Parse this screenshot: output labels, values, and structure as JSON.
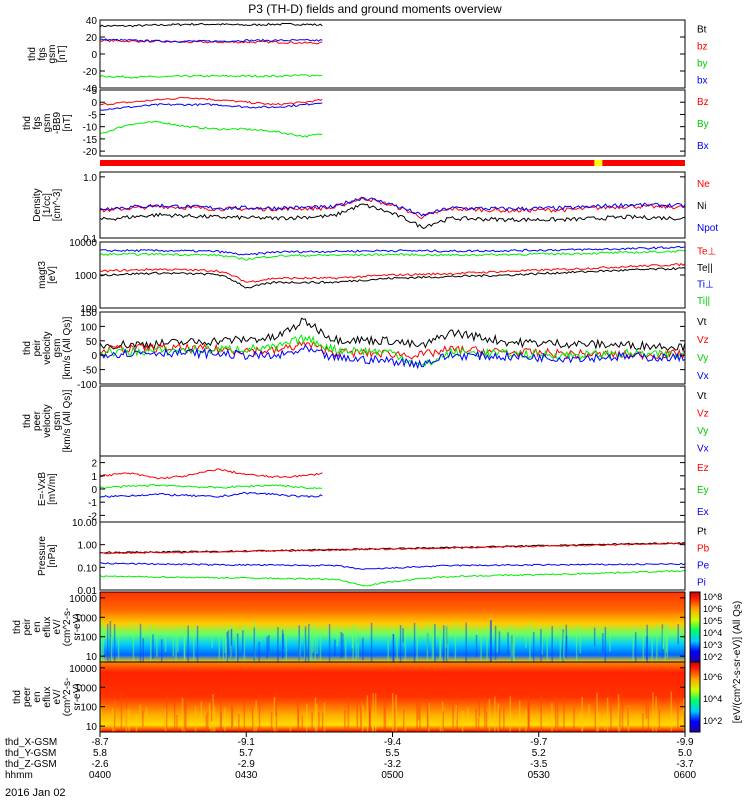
{
  "title": "P3 (TH-D) fields and ground moments overview",
  "date": "2016 Jan 02",
  "chart_data": [
    {
      "id": "fgs",
      "type": "line",
      "ylabel": [
        "thd",
        "fgs",
        "gsm",
        "[nT]"
      ],
      "ylim": [
        -40,
        40
      ],
      "yticks": [
        "40",
        "20",
        "0",
        "-20",
        "-40"
      ],
      "ytickvals": [
        40,
        20,
        0,
        -20,
        -40
      ],
      "legend": [
        "Bt",
        "bz",
        "by",
        "bx"
      ],
      "series": [
        {
          "name": "Bt",
          "color": "#000000",
          "x": [
            0.0,
            0.05,
            0.1,
            0.15,
            0.2,
            0.25,
            0.3,
            0.35,
            0.38
          ],
          "values": [
            33,
            33,
            34,
            35,
            35,
            34,
            35,
            35,
            34
          ]
        },
        {
          "name": "bz",
          "color": "#ff0000",
          "x": [
            0.0,
            0.05,
            0.1,
            0.15,
            0.2,
            0.25,
            0.3,
            0.35,
            0.38
          ],
          "values": [
            16,
            15,
            15,
            14,
            14,
            14,
            14,
            13,
            13
          ]
        },
        {
          "name": "by",
          "color": "#00ee00",
          "x": [
            0.0,
            0.05,
            0.1,
            0.15,
            0.2,
            0.25,
            0.3,
            0.35,
            0.38
          ],
          "values": [
            -26,
            -27,
            -27,
            -26,
            -26,
            -26,
            -26,
            -25,
            -25
          ]
        },
        {
          "name": "bx",
          "color": "#0000ff",
          "x": [
            0.0,
            0.05,
            0.1,
            0.15,
            0.2,
            0.25,
            0.3,
            0.35,
            0.38
          ],
          "values": [
            17,
            16,
            15,
            15,
            15,
            16,
            16,
            16,
            16
          ]
        }
      ]
    },
    {
      "id": "fgsgsm",
      "type": "line",
      "ylabel": [
        "thd",
        "fgs",
        "gsm",
        "-BB9",
        "[nT]"
      ],
      "ylim": [
        -22,
        5
      ],
      "yticks": [
        "5",
        "0",
        "-5",
        "-10",
        "-15",
        "-20"
      ],
      "ytickvals": [
        5,
        0,
        -5,
        -10,
        -15,
        -20
      ],
      "legend": [
        "Bz",
        "By",
        "Bx"
      ],
      "series": [
        {
          "name": "Bz",
          "color": "#ff0000",
          "x": [
            0.0,
            0.05,
            0.1,
            0.15,
            0.2,
            0.25,
            0.3,
            0.35,
            0.38
          ],
          "values": [
            -1,
            0,
            1,
            2,
            1,
            0,
            -1,
            0,
            1
          ]
        },
        {
          "name": "By",
          "color": "#00ee00",
          "x": [
            0.0,
            0.05,
            0.1,
            0.15,
            0.2,
            0.25,
            0.3,
            0.35,
            0.38
          ],
          "values": [
            -13,
            -9,
            -8,
            -10,
            -11,
            -11,
            -12,
            -14,
            -13
          ]
        },
        {
          "name": "Bx",
          "color": "#0000ff",
          "x": [
            0.0,
            0.05,
            0.1,
            0.15,
            0.2,
            0.25,
            0.3,
            0.35,
            0.38
          ],
          "values": [
            -3,
            -2,
            -1,
            -1,
            -1,
            -2,
            -2,
            -1,
            0
          ]
        }
      ]
    },
    {
      "id": "density",
      "type": "line",
      "scale": "log",
      "ylabel": [
        "Density",
        "[1/cc]",
        "[cm^-3]"
      ],
      "ylim": [
        0.1,
        1.2
      ],
      "yticks": [
        "1.0",
        "0.1"
      ],
      "ytickvals": [
        1.0,
        0.1
      ],
      "legend": [
        "Ne",
        "Ni",
        "Npot"
      ],
      "series": [
        {
          "name": "Ne",
          "color": "#ff0000",
          "x": [
            0,
            0.1,
            0.2,
            0.3,
            0.4,
            0.45,
            0.5,
            0.55,
            0.6,
            0.7,
            0.8,
            0.9,
            1.0
          ],
          "values": [
            0.28,
            0.33,
            0.3,
            0.3,
            0.31,
            0.45,
            0.34,
            0.22,
            0.3,
            0.28,
            0.29,
            0.33,
            0.32
          ]
        },
        {
          "name": "Ni",
          "color": "#000000",
          "x": [
            0,
            0.1,
            0.2,
            0.3,
            0.4,
            0.45,
            0.5,
            0.55,
            0.6,
            0.7,
            0.8,
            0.9,
            1.0
          ],
          "values": [
            0.2,
            0.24,
            0.22,
            0.21,
            0.23,
            0.35,
            0.25,
            0.15,
            0.21,
            0.2,
            0.2,
            0.22,
            0.21
          ]
        },
        {
          "name": "Npot",
          "color": "#0000ff",
          "x": [
            0,
            0.1,
            0.2,
            0.3,
            0.4,
            0.45,
            0.5,
            0.55,
            0.6,
            0.7,
            0.8,
            0.9,
            1.0
          ],
          "values": [
            0.3,
            0.34,
            0.31,
            0.31,
            0.32,
            0.46,
            0.35,
            0.23,
            0.31,
            0.3,
            0.31,
            0.35,
            0.34
          ]
        }
      ]
    },
    {
      "id": "temp",
      "type": "line",
      "scale": "log",
      "ylabel": [
        "magt3",
        "[eV]"
      ],
      "ylim": [
        100,
        10000
      ],
      "yticks": [
        "10000",
        "1000",
        "100"
      ],
      "ytickvals": [
        10000,
        1000,
        100
      ],
      "legend": [
        "Te⊥",
        "Te||",
        "Ti⊥",
        "Ti||"
      ],
      "series": [
        {
          "name": "Te⊥",
          "color": "#ff0000",
          "x": [
            0,
            0.1,
            0.2,
            0.25,
            0.3,
            0.4,
            0.5,
            0.6,
            0.7,
            0.8,
            0.9,
            1.0
          ],
          "values": [
            1300,
            1500,
            1350,
            600,
            800,
            800,
            1000,
            1100,
            1300,
            1500,
            1800,
            2100
          ]
        },
        {
          "name": "Te||",
          "color": "#000000",
          "x": [
            0,
            0.1,
            0.2,
            0.25,
            0.3,
            0.4,
            0.5,
            0.6,
            0.7,
            0.8,
            0.9,
            1.0
          ],
          "values": [
            1000,
            1150,
            1050,
            400,
            600,
            600,
            800,
            900,
            1000,
            1200,
            1400,
            1600
          ]
        },
        {
          "name": "Ti⊥",
          "color": "#0000ff",
          "x": [
            0,
            0.1,
            0.2,
            0.25,
            0.3,
            0.4,
            0.5,
            0.6,
            0.7,
            0.8,
            0.9,
            1.0
          ],
          "values": [
            5500,
            5500,
            5200,
            4000,
            5000,
            5200,
            5500,
            5300,
            5500,
            5800,
            6200,
            7000
          ]
        },
        {
          "name": "Ti||",
          "color": "#00ee00",
          "x": [
            0,
            0.1,
            0.2,
            0.25,
            0.3,
            0.4,
            0.5,
            0.6,
            0.7,
            0.8,
            0.9,
            1.0
          ],
          "values": [
            4200,
            4300,
            4000,
            3000,
            3800,
            4000,
            4200,
            4000,
            4200,
            4400,
            4800,
            5300
          ]
        }
      ]
    },
    {
      "id": "pvel",
      "type": "line",
      "ylabel": [
        "thd",
        "peir",
        "velocity",
        "gsm",
        "[km/s (All Qs)]"
      ],
      "ylim": [
        -100,
        150
      ],
      "yticks": [
        "150",
        "100",
        "50",
        "0",
        "-50",
        "-100"
      ],
      "ytickvals": [
        150,
        100,
        50,
        0,
        -50,
        -100
      ],
      "legend": [
        "Vt",
        "Vz",
        "Vy",
        "Vx"
      ],
      "series": [
        {
          "name": "Vt",
          "color": "#000000",
          "x": [
            0,
            0.1,
            0.2,
            0.3,
            0.35,
            0.4,
            0.5,
            0.55,
            0.6,
            0.7,
            0.8,
            0.9,
            1.0
          ],
          "values": [
            35,
            40,
            50,
            60,
            120,
            55,
            50,
            30,
            80,
            45,
            40,
            35,
            30
          ]
        },
        {
          "name": "Vz",
          "color": "#ff0000",
          "x": [
            0,
            0.1,
            0.2,
            0.3,
            0.35,
            0.4,
            0.5,
            0.55,
            0.6,
            0.7,
            0.8,
            0.9,
            1.0
          ],
          "values": [
            20,
            25,
            20,
            15,
            40,
            10,
            5,
            0,
            20,
            10,
            5,
            0,
            5
          ]
        },
        {
          "name": "Vy",
          "color": "#00ee00",
          "x": [
            0,
            0.1,
            0.2,
            0.3,
            0.35,
            0.4,
            0.5,
            0.55,
            0.6,
            0.7,
            0.8,
            0.9,
            1.0
          ],
          "values": [
            10,
            15,
            20,
            25,
            60,
            20,
            10,
            -40,
            10,
            5,
            0,
            5,
            0
          ]
        },
        {
          "name": "Vx",
          "color": "#0000ff",
          "x": [
            0,
            0.1,
            0.2,
            0.3,
            0.35,
            0.4,
            0.5,
            0.55,
            0.6,
            0.7,
            0.8,
            0.9,
            1.0
          ],
          "values": [
            5,
            10,
            5,
            -5,
            20,
            -10,
            -20,
            -30,
            0,
            -5,
            -10,
            -5,
            -10
          ]
        }
      ]
    },
    {
      "id": "evel",
      "type": "line",
      "ylabel": [
        "thd",
        "peer",
        "velocity",
        "gsm",
        "[km/s (All Qs)]"
      ],
      "ylim": [
        -100,
        150
      ],
      "yticks": [],
      "ytickvals": [],
      "legend": [
        "Vt",
        "Vz",
        "Vy",
        "Vx"
      ],
      "series": []
    },
    {
      "id": "efield",
      "type": "line",
      "ylabel": [
        "E=-VxB",
        "[mV/m]"
      ],
      "ylim": [
        -2.5,
        2.5
      ],
      "yticks": [
        "2",
        "1",
        "0",
        "-1",
        "-2"
      ],
      "ytickvals": [
        2,
        1,
        0,
        -1,
        -2
      ],
      "legend": [
        "Ez",
        "Ey",
        "Ex"
      ],
      "series": [
        {
          "name": "Ez",
          "color": "#ff0000",
          "x": [
            0,
            0.05,
            0.1,
            0.15,
            0.2,
            0.25,
            0.3,
            0.35,
            0.38
          ],
          "values": [
            1.0,
            1.2,
            0.8,
            1.0,
            1.5,
            1.1,
            0.9,
            1.0,
            1.2
          ]
        },
        {
          "name": "Ey",
          "color": "#00ee00",
          "x": [
            0,
            0.05,
            0.1,
            0.15,
            0.2,
            0.25,
            0.3,
            0.35,
            0.38
          ],
          "values": [
            0.1,
            0.2,
            0.3,
            0.2,
            0.1,
            0.2,
            0.3,
            0.1,
            0.0
          ]
        },
        {
          "name": "Ex",
          "color": "#0000ff",
          "x": [
            0,
            0.05,
            0.1,
            0.15,
            0.2,
            0.25,
            0.3,
            0.35,
            0.38
          ],
          "values": [
            -0.6,
            -0.5,
            -0.4,
            -0.5,
            -0.6,
            -0.3,
            -0.4,
            -0.6,
            -0.5
          ]
        }
      ]
    },
    {
      "id": "pressure",
      "type": "line",
      "scale": "log",
      "ylabel": [
        "Pressure",
        "[nPa]"
      ],
      "ylim": [
        0.01,
        10
      ],
      "yticks": [
        "10.00",
        "1.00",
        "0.10",
        "0.01"
      ],
      "ytickvals": [
        10,
        1,
        0.1,
        0.01
      ],
      "legend": [
        "Pt",
        "Pb",
        "Pe",
        "Pi"
      ],
      "series": [
        {
          "name": "Pt",
          "color": "#000000",
          "x": [
            0,
            0.2,
            0.4,
            0.6,
            0.8,
            1.0
          ],
          "values": [
            0.45,
            0.5,
            0.6,
            0.75,
            0.95,
            1.2
          ]
        },
        {
          "name": "Pb",
          "color": "#ff0000",
          "x": [
            0,
            0.2,
            0.4,
            0.6,
            0.8,
            1.0
          ],
          "values": [
            0.42,
            0.48,
            0.58,
            0.72,
            0.9,
            1.15
          ]
        },
        {
          "name": "Pe",
          "color": "#0000ff",
          "x": [
            0,
            0.2,
            0.4,
            0.45,
            0.6,
            0.8,
            1.0
          ],
          "values": [
            0.15,
            0.13,
            0.12,
            0.08,
            0.12,
            0.13,
            0.14
          ]
        },
        {
          "name": "Pi",
          "color": "#00ee00",
          "x": [
            0,
            0.2,
            0.4,
            0.45,
            0.6,
            0.8,
            1.0
          ],
          "values": [
            0.04,
            0.035,
            0.03,
            0.015,
            0.04,
            0.05,
            0.07
          ]
        }
      ]
    },
    {
      "id": "ionspec",
      "type": "heatmap",
      "scale": "log",
      "ylabel": [
        "thd",
        "peir",
        "en",
        "eflux",
        "eV/",
        "(cm^2-s-",
        "sr-eV)"
      ],
      "ylim": [
        5,
        20000
      ],
      "yticks": [
        "10000",
        "1000",
        "100",
        "10"
      ],
      "ytickvals": [
        10000,
        1000,
        100,
        10
      ]
    },
    {
      "id": "elecspec",
      "type": "heatmap",
      "scale": "log",
      "ylabel": [
        "thd",
        "peer",
        "en",
        "eflux",
        "eV/",
        "(cm^2-s-",
        "sr-eV)"
      ],
      "ylim": [
        5,
        20000
      ],
      "yticks": [
        "10000",
        "1000",
        "100",
        "10"
      ],
      "ytickvals": [
        10000,
        1000,
        100,
        10
      ]
    }
  ],
  "colorbar": {
    "label": "[eV/(cm^2-s-sr-eV)] (All Qs)",
    "ticks": [
      "10^8",
      "10^6",
      "10^5",
      "10^4",
      "10^3",
      "10^2"
    ]
  },
  "colorbar2": {
    "ticks": [
      "10^6",
      "10^4",
      "10^2"
    ]
  },
  "xaxis": {
    "rows": [
      {
        "name": "thd_X-GSM",
        "values": [
          "-8.7",
          "-9.1",
          "-9.4",
          "-9.7",
          "-9.9"
        ]
      },
      {
        "name": "thd_Y-GSM",
        "values": [
          "5.8",
          "5.7",
          "5.5",
          "5.2",
          "5.0"
        ]
      },
      {
        "name": "thd_Z-GSM",
        "values": [
          "-2.6",
          "-2.9",
          "-3.2",
          "-3.5",
          "-3.7"
        ]
      },
      {
        "name": "hhmm",
        "values": [
          "0400",
          "0430",
          "0500",
          "0530",
          "0600"
        ]
      }
    ]
  }
}
